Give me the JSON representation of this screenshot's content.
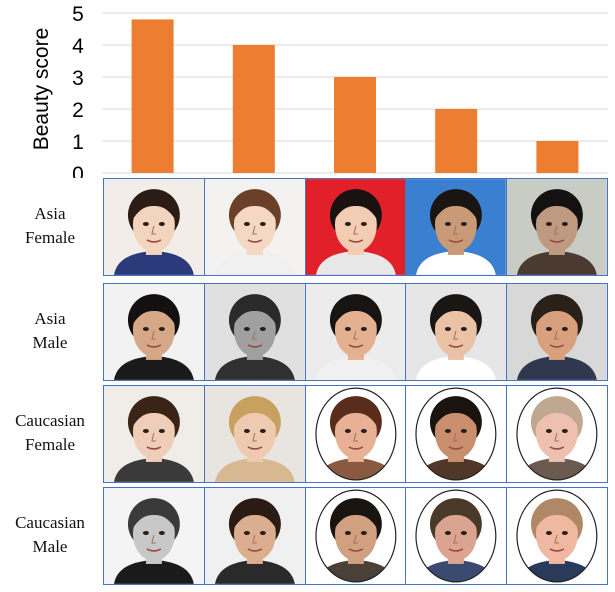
{
  "chart_data": {
    "type": "bar",
    "ylabel": "Beauty score",
    "ylim": [
      0,
      5
    ],
    "yticks": [
      "0",
      "1",
      "2",
      "3",
      "4",
      "5"
    ],
    "values": [
      4.8,
      4.0,
      3.0,
      2.0,
      1.0
    ],
    "bar_color": "#ed7d31",
    "grid": true
  },
  "rows": [
    {
      "line1": "Asia",
      "line2": "Female",
      "bg": [
        "#f2ede8",
        "#f4f2f0",
        "#e2202a",
        "#3a7fd0",
        "#c8ccc4"
      ],
      "skin": [
        "#f3d4bf",
        "#f5d8c4",
        "#f2cdb4",
        "#c99a78",
        "#bf9a80"
      ],
      "hair": [
        "#2b1d16",
        "#6b4028",
        "#1a1210",
        "#1a1412",
        "#141210"
      ],
      "shirt": [
        "#2a3a7a",
        "#f0f0f0",
        "#e8e8e8",
        "#ffffff",
        "#4a3a30"
      ]
    },
    {
      "line1": "Asia",
      "line2": "Male",
      "bg": [
        "#f2f2f2",
        "#e0e0e0",
        "#ececec",
        "#e6e6e6",
        "#d8d8d8"
      ],
      "skin": [
        "#d6a888",
        "#a0a0a0",
        "#e3b090",
        "#eac2a6",
        "#d8a07c"
      ],
      "hair": [
        "#141010",
        "#2a2a2a",
        "#181412",
        "#1a1614",
        "#2a2018"
      ],
      "shirt": [
        "#1a1a1a",
        "#303030",
        "#f0f0f0",
        "#ffffff",
        "#303850"
      ]
    },
    {
      "line1": "Caucasian",
      "line2": "Female",
      "bg": [
        "#f0ece8",
        "#e8e4e0",
        "#ffffff",
        "#ffffff",
        "#ffffff"
      ],
      "skin": [
        "#f0cdb8",
        "#eecab0",
        "#e8b094",
        "#c88e6e",
        "#eec0b0"
      ],
      "hair": [
        "#3a2418",
        "#c8a060",
        "#5a2c1c",
        "#1a1410",
        "#c0a890"
      ],
      "shirt": [
        "#3a3a3a",
        "#d8b890",
        "#8a5a40",
        "#503828",
        "#6a5a50"
      ]
    },
    {
      "line1": "Caucasian",
      "line2": "Male",
      "bg": [
        "#f4f4f4",
        "#f0f0f0",
        "#ffffff",
        "#ffffff",
        "#ffffff"
      ],
      "skin": [
        "#c8c8c8",
        "#dcae90",
        "#d0a080",
        "#dba490",
        "#f0b8a0"
      ],
      "hair": [
        "#3a3a3a",
        "#2a1c14",
        "#1a1410",
        "#4a3828",
        "#b08868"
      ],
      "shirt": [
        "#1a1a1a",
        "#2a2a2a",
        "#4a4038",
        "#3a4a70",
        "#2a3a5a"
      ]
    }
  ]
}
